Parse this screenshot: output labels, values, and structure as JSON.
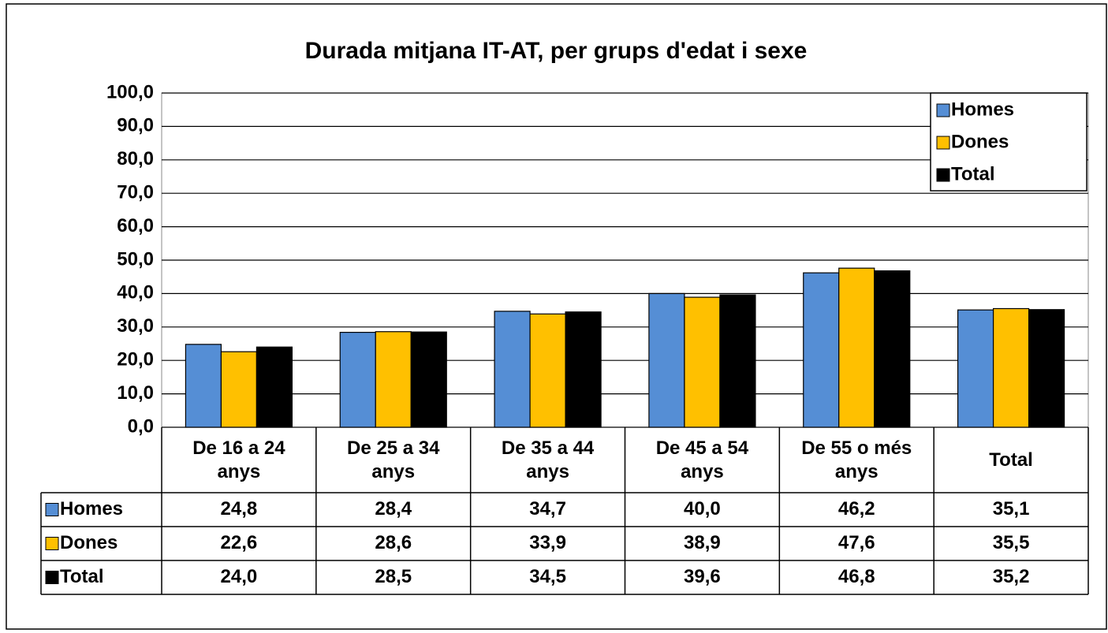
{
  "chart_data": {
    "type": "bar",
    "title": "Durada mitjana IT-AT,  per grups d'edat i sexe",
    "categories": [
      "De 16 a 24 anys",
      "De 25 a 34 anys",
      "De 35 a 44 anys",
      "De 45 a 54 anys",
      "De 55 o més anys",
      "Total"
    ],
    "series": [
      {
        "name": "Homes",
        "color": "#558ed5",
        "values": [
          24.8,
          28.4,
          34.7,
          40.0,
          46.2,
          35.1
        ],
        "value_labels": [
          "24,8",
          "28,4",
          "34,7",
          "40,0",
          "46,2",
          "35,1"
        ]
      },
      {
        "name": "Dones",
        "color": "#ffc000",
        "values": [
          22.6,
          28.6,
          33.9,
          38.9,
          47.6,
          35.5
        ],
        "value_labels": [
          "22,6",
          "28,6",
          "33,9",
          "38,9",
          "47,6",
          "35,5"
        ]
      },
      {
        "name": "Total",
        "color": "#000000",
        "values": [
          24.0,
          28.5,
          34.5,
          39.6,
          46.8,
          35.2
        ],
        "value_labels": [
          "24,0",
          "28,5",
          "34,5",
          "39,6",
          "46,8",
          "35,2"
        ]
      }
    ],
    "ylim": [
      0,
      100
    ],
    "yticks": [
      {
        "value": 0,
        "label": "0,0"
      },
      {
        "value": 10,
        "label": "10,0"
      },
      {
        "value": 20,
        "label": "20,0"
      },
      {
        "value": 30,
        "label": "30,0"
      },
      {
        "value": 40,
        "label": "40,0"
      },
      {
        "value": 50,
        "label": "50,0"
      },
      {
        "value": 60,
        "label": "60,0"
      },
      {
        "value": 70,
        "label": "70,0"
      },
      {
        "value": 80,
        "label": "80,0"
      },
      {
        "value": 90,
        "label": "90,0"
      },
      {
        "value": 100,
        "label": "100,0"
      }
    ],
    "grid": true,
    "legend": "upper right"
  }
}
